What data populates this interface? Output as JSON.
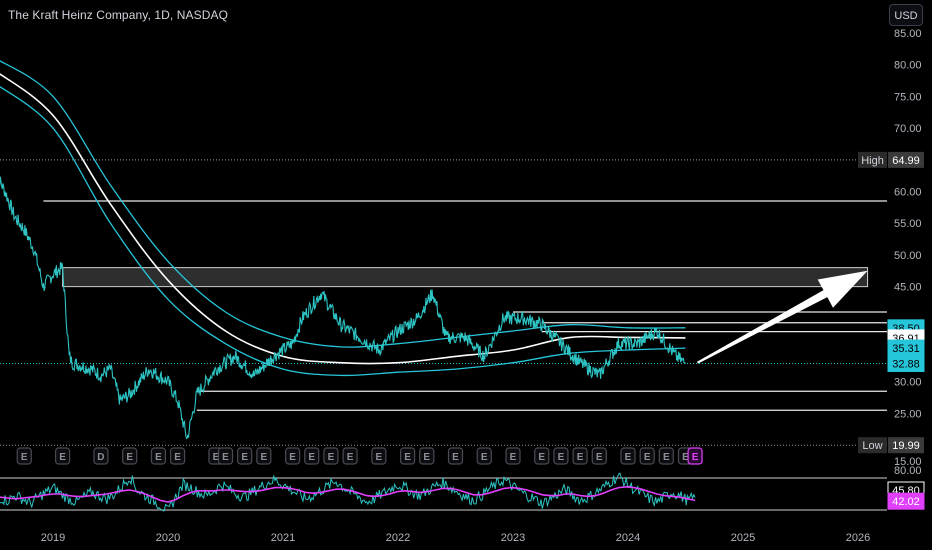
{
  "header": {
    "title": "The Kraft Heinz Company, 1D, NASDAQ",
    "currency_label": "USD"
  },
  "colors": {
    "background": "#000000",
    "price_line": "#2ec4c4",
    "envelope": "#26c6da",
    "moving_average": "#ffffff",
    "rsi_line": "#2ec4c4",
    "rsi_ma": "#e040fb",
    "zone_fill": "#3a3a3a",
    "earnings_badge": "#9c27b0"
  },
  "chart_data": [
    {
      "type": "line",
      "title": "The Kraft Heinz Company, 1D, NASDAQ",
      "currency": "USD",
      "x_axis": {
        "tick_labels": [
          "2019",
          "2020",
          "2021",
          "2022",
          "2023",
          "2024",
          "2025",
          "2026"
        ]
      },
      "y_axis": {
        "scale": "linear",
        "ylim": [
          17.5,
          85
        ],
        "tick_labels": [
          "85.00",
          "80.00",
          "75.00",
          "70.00",
          "60.00",
          "55.00",
          "50.00",
          "45.00",
          "30.00",
          "25.00",
          "15.00"
        ]
      },
      "price_series": {
        "name": "Price",
        "points": [
          [
            "2018-07",
            63
          ],
          [
            "2018-08",
            60
          ],
          [
            "2018-09",
            56
          ],
          [
            "2018-10",
            54
          ],
          [
            "2018-11",
            51
          ],
          [
            "2018-12",
            45
          ],
          [
            "2019-01",
            47
          ],
          [
            "2019-02",
            48
          ],
          [
            "2019-02-22",
            34
          ],
          [
            "2019-03",
            33
          ],
          [
            "2019-05",
            32
          ],
          [
            "2019-06",
            31
          ],
          [
            "2019-07",
            32
          ],
          [
            "2019-08",
            27
          ],
          [
            "2019-09",
            28
          ],
          [
            "2019-10",
            30
          ],
          [
            "2019-11",
            32
          ],
          [
            "2019-12",
            31
          ],
          [
            "2020-01",
            30
          ],
          [
            "2020-02",
            27
          ],
          [
            "2020-03",
            21
          ],
          [
            "2020-04",
            28
          ],
          [
            "2020-05",
            30
          ],
          [
            "2020-06",
            32
          ],
          [
            "2020-08",
            34
          ],
          [
            "2020-10",
            31
          ],
          [
            "2020-12",
            34
          ],
          [
            "2021-02",
            36
          ],
          [
            "2021-03",
            40
          ],
          [
            "2021-05",
            44
          ],
          [
            "2021-07",
            39
          ],
          [
            "2021-09",
            37
          ],
          [
            "2021-11",
            35
          ],
          [
            "2022-01",
            38
          ],
          [
            "2022-03",
            40
          ],
          [
            "2022-04-20",
            44
          ],
          [
            "2022-06",
            37
          ],
          [
            "2022-08",
            37
          ],
          [
            "2022-10",
            34
          ],
          [
            "2022-12",
            40
          ],
          [
            "2023-02",
            40
          ],
          [
            "2023-04",
            39
          ],
          [
            "2023-06",
            36
          ],
          [
            "2023-08",
            33
          ],
          [
            "2023-10",
            31
          ],
          [
            "2023-12",
            36
          ],
          [
            "2024-02",
            36
          ],
          [
            "2024-04",
            38
          ],
          [
            "2024-06",
            34
          ],
          [
            "2024-07",
            32.88
          ]
        ]
      },
      "moving_average": {
        "points": [
          [
            "2018-07",
            79
          ],
          [
            "2019-01",
            72
          ],
          [
            "2019-07",
            58
          ],
          [
            "2020-01",
            46
          ],
          [
            "2020-07",
            38
          ],
          [
            "2021-01",
            34
          ],
          [
            "2021-07",
            33
          ],
          [
            "2022-01",
            33
          ],
          [
            "2022-07",
            34
          ],
          [
            "2023-01",
            35
          ],
          [
            "2023-07",
            37
          ],
          [
            "2024-01",
            37
          ],
          [
            "2024-07",
            36.91
          ]
        ]
      },
      "envelope_upper": {
        "points": [
          [
            "2018-07",
            81
          ],
          [
            "2019-01",
            75
          ],
          [
            "2019-07",
            61
          ],
          [
            "2020-01",
            49
          ],
          [
            "2020-07",
            41
          ],
          [
            "2021-01",
            37
          ],
          [
            "2021-07",
            35.5
          ],
          [
            "2022-01",
            36
          ],
          [
            "2022-07",
            37
          ],
          [
            "2023-01",
            38
          ],
          [
            "2023-07",
            39
          ],
          [
            "2024-01",
            38.5
          ],
          [
            "2024-07",
            38.5
          ]
        ]
      },
      "envelope_lower": {
        "points": [
          [
            "2018-07",
            77
          ],
          [
            "2019-01",
            70
          ],
          [
            "2019-07",
            55
          ],
          [
            "2020-01",
            43
          ],
          [
            "2020-07",
            36
          ],
          [
            "2021-01",
            32
          ],
          [
            "2021-07",
            31
          ],
          [
            "2022-01",
            31.5
          ],
          [
            "2022-07",
            32
          ],
          [
            "2023-01",
            33
          ],
          [
            "2023-07",
            34.5
          ],
          [
            "2024-01",
            35
          ],
          [
            "2024-07",
            35.31
          ]
        ]
      },
      "horizontal_levels": [
        {
          "value": 58.5,
          "start": "2018-12"
        },
        {
          "value": 41,
          "start": "2023-01"
        },
        {
          "value": 39.3,
          "start": "2023-04"
        },
        {
          "value": 37.9,
          "start": "2023-04"
        },
        {
          "value": 28.5,
          "start": "2020-04"
        },
        {
          "value": 25.5,
          "start": "2020-04"
        }
      ],
      "zone": {
        "y_top": 48,
        "y_bottom": 45,
        "start": "2019-02",
        "end": "2026-02"
      },
      "high_line": {
        "label": "High",
        "value": "64.99",
        "y": 64.99
      },
      "low_line": {
        "label": "Low",
        "value": "19.99",
        "y": 19.99
      },
      "current_price_line": {
        "y": 32.88
      },
      "price_tags": [
        {
          "value": "38.50",
          "y": 38.5,
          "bg": "#26c6da",
          "fg": "#000000"
        },
        {
          "value": "36.91",
          "y": 36.91,
          "bg": "#ffffff",
          "fg": "#000000"
        },
        {
          "value": "35.31",
          "y": 35.31,
          "bg": "#26c6da",
          "fg": "#000000"
        },
        {
          "value": "32.88",
          "y": 32.88,
          "bg": "#26c6da",
          "fg": "#000000"
        }
      ],
      "arrow": {
        "from": [
          "2024-07",
          33
        ],
        "to": [
          "2026-02",
          47.5
        ]
      },
      "earnings_markers": {
        "labels": [
          "E",
          "E",
          "E",
          "D",
          "E",
          "E",
          "E",
          "E",
          "E",
          "E",
          "E",
          "E",
          "E",
          "E",
          "E",
          "E",
          "E",
          "E",
          "E",
          "E",
          "E",
          "E",
          "E",
          "E",
          "E",
          "E",
          "E",
          "E",
          "E",
          "E"
        ],
        "dates": [
          "2018-06",
          "2018-10",
          "2019-02",
          "2019-06",
          "2019-09",
          "2019-12",
          "2020-02",
          "2020-06",
          "2020-07",
          "2020-09",
          "2020-11",
          "2021-02",
          "2021-04",
          "2021-06",
          "2021-08",
          "2021-11",
          "2022-02",
          "2022-04",
          "2022-07",
          "2022-10",
          "2023-01",
          "2023-04",
          "2023-06",
          "2023-08",
          "2023-10",
          "2024-01",
          "2024-03",
          "2024-05",
          "2024-07",
          "2024-08"
        ],
        "last_highlighted": true
      }
    },
    {
      "type": "line",
      "title": "",
      "y_axis": {
        "ylim": [
          20,
          80
        ],
        "tick_labels": [
          "80.00"
        ]
      },
      "rsi_values": [
        45,
        42,
        48,
        44,
        38,
        46,
        52,
        58,
        50,
        44,
        40,
        46,
        52,
        48,
        44,
        50,
        60,
        72,
        55,
        48,
        42,
        36,
        28,
        46,
        62,
        58,
        52,
        48,
        54,
        62,
        56,
        50,
        46,
        52,
        58,
        64,
        68,
        62,
        56,
        50,
        44,
        48,
        54,
        60,
        66,
        58,
        52,
        46,
        40,
        44,
        50,
        56,
        62,
        58,
        52,
        48,
        54,
        60,
        64,
        58,
        52,
        46,
        42,
        48,
        56,
        62,
        68,
        60,
        54,
        48,
        44,
        38,
        44,
        50,
        56,
        48,
        42,
        46,
        52,
        58,
        66,
        72,
        64,
        56,
        50,
        44,
        40,
        46,
        52,
        48,
        42,
        45.8
      ],
      "rsi_ma_values": [
        46,
        45,
        44,
        45,
        46,
        47,
        49,
        50,
        50,
        48,
        47,
        47,
        48,
        49,
        50,
        52,
        54,
        55,
        53,
        50,
        46,
        42,
        40,
        43,
        48,
        52,
        54,
        54,
        54,
        55,
        55,
        54,
        53,
        53,
        54,
        56,
        58,
        58,
        57,
        55,
        52,
        51,
        52,
        54,
        56,
        56,
        54,
        51,
        48,
        47,
        48,
        50,
        53,
        54,
        53,
        52,
        53,
        55,
        57,
        57,
        55,
        52,
        49,
        49,
        51,
        54,
        57,
        58,
        57,
        55,
        52,
        49,
        48,
        48,
        50,
        50,
        48,
        47,
        48,
        51,
        55,
        58,
        59,
        58,
        56,
        53,
        50,
        48,
        47,
        46,
        44,
        42.02
      ],
      "level_upper": 70,
      "level_lower": 30,
      "value_tags": [
        {
          "value": "45.80",
          "bg": "#000000",
          "fg": "#ffffff",
          "border": "#ffffff"
        },
        {
          "value": "42.02",
          "bg": "#e040fb",
          "fg": "#ffffff",
          "border": "#e040fb"
        }
      ]
    }
  ]
}
